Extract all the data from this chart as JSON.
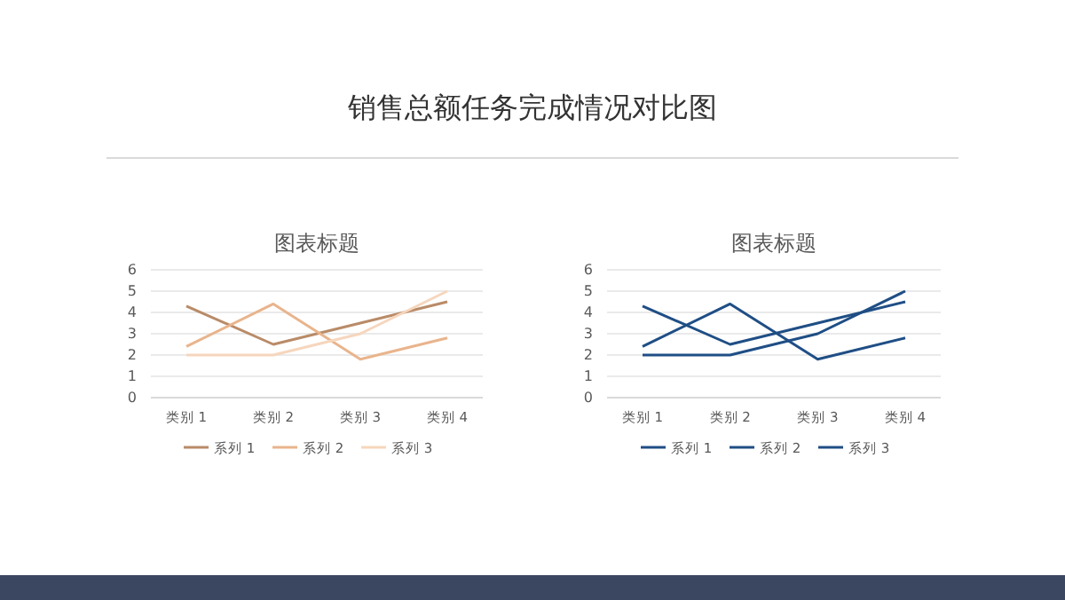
{
  "chart_data": [
    {
      "type": "line",
      "title": "图表标题",
      "annotations": [
        "销售总额任务完成情况对比图"
      ],
      "categories": [
        "类别 1",
        "类别 2",
        "类别 3",
        "类别 4"
      ],
      "ylim": [
        0,
        6
      ],
      "yticks": [
        0,
        1,
        2,
        3,
        4,
        5,
        6
      ],
      "grid": "y",
      "legend": "bottom",
      "series": [
        {
          "name": "系列 1",
          "color": "#b98b68",
          "values": [
            4.3,
            2.5,
            3.5,
            4.5
          ]
        },
        {
          "name": "系列 2",
          "color": "#e9b48c",
          "values": [
            2.4,
            4.4,
            1.8,
            2.8
          ]
        },
        {
          "name": "系列 3",
          "color": "#f6d6bd",
          "values": [
            2,
            2,
            3,
            5
          ]
        }
      ]
    },
    {
      "type": "line",
      "title": "图表标题",
      "categories": [
        "类别 1",
        "类别 2",
        "类别 3",
        "类别 4"
      ],
      "ylim": [
        0,
        6
      ],
      "yticks": [
        0,
        1,
        2,
        3,
        4,
        5,
        6
      ],
      "grid": "y",
      "legend": "bottom",
      "series": [
        {
          "name": "系列 1",
          "color": "#1f4e85",
          "values": [
            4.3,
            2.5,
            3.5,
            4.5
          ]
        },
        {
          "name": "系列 2",
          "color": "#1f4e85",
          "values": [
            2.4,
            4.4,
            1.8,
            2.8
          ]
        },
        {
          "name": "系列 3",
          "color": "#1f4e85",
          "values": [
            2,
            2,
            3,
            5
          ]
        }
      ]
    }
  ]
}
